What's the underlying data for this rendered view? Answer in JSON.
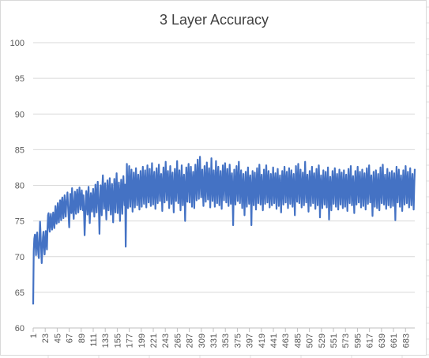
{
  "chart_data": {
    "type": "line",
    "title": "3 Layer Accuracy",
    "xlabel": "",
    "ylabel": "",
    "ylim": [
      60,
      100
    ],
    "yticks": [
      60,
      65,
      70,
      75,
      80,
      85,
      90,
      95,
      100
    ],
    "xlim": [
      1,
      700
    ],
    "xticks": [
      1,
      23,
      45,
      67,
      89,
      111,
      133,
      155,
      177,
      199,
      221,
      243,
      265,
      287,
      309,
      331,
      353,
      375,
      397,
      419,
      441,
      463,
      485,
      507,
      529,
      551,
      573,
      595,
      617,
      639,
      661,
      683
    ],
    "grid": true,
    "legend": "none",
    "series_color": "#4472c4",
    "series": [
      {
        "values": [
          63.3,
          70.8,
          72.5,
          73.1,
          71.9,
          70.2,
          72.8,
          73.4,
          71.5,
          70.4,
          69.8,
          72.6,
          74.9,
          73.1,
          71.2,
          69.1,
          70.9,
          72.7,
          73.5,
          71.8,
          70.3,
          72.1,
          73.6,
          72.4,
          71.0,
          73.9,
          75.8,
          76.1,
          74.2,
          73.5,
          75.3,
          76.0,
          74.5,
          73.8,
          74.9,
          76.2,
          75.1,
          74.0,
          75.5,
          77.1,
          75.8,
          74.6,
          75.9,
          77.5,
          76.0,
          74.8,
          76.4,
          77.9,
          76.3,
          75.1,
          77.8,
          78.3,
          76.5,
          75.4,
          77.0,
          78.6,
          76.9,
          75.6,
          77.4,
          78.1,
          79.0,
          77.2,
          75.8,
          74.1,
          76.5,
          78.8,
          77.5,
          76.1,
          79.6,
          78.0,
          76.4,
          75.3,
          77.7,
          79.1,
          77.3,
          76.0,
          78.5,
          79.4,
          77.6,
          76.2,
          78.0,
          79.7,
          78.2,
          76.6,
          77.9,
          79.3,
          77.8,
          76.5,
          78.6,
          76.0,
          73.0,
          75.4,
          77.8,
          79.2,
          77.4,
          75.9,
          78.3,
          79.8,
          76.8,
          74.7,
          77.0,
          78.9,
          77.5,
          76.3,
          78.1,
          79.5,
          77.7,
          75.6,
          77.9,
          80.1,
          78.3,
          76.2,
          78.8,
          80.5,
          78.6,
          76.4,
          73.2,
          77.5,
          80.0,
          78.2,
          75.8,
          79.6,
          81.4,
          79.2,
          76.7,
          78.4,
          80.3,
          77.9,
          75.2,
          78.1,
          80.7,
          78.8,
          76.5,
          79.1,
          81.0,
          78.6,
          75.9,
          78.3,
          80.2,
          77.6,
          74.8,
          78.0,
          80.9,
          78.5,
          76.2,
          79.3,
          81.7,
          79.0,
          76.1,
          78.6,
          80.4,
          77.8,
          75.0,
          78.4,
          80.8,
          78.2,
          76.0,
          79.5,
          81.3,
          78.7,
          77.2,
          80.1,
          71.4,
          78.0,
          83.0,
          79.3,
          76.8,
          79.9,
          82.7,
          79.5,
          77.0,
          80.2,
          82.2,
          79.0,
          76.3,
          79.4,
          81.8,
          78.9,
          76.9,
          80.0,
          82.4,
          79.6,
          77.2,
          79.8,
          81.5,
          78.7,
          76.6,
          79.9,
          82.0,
          79.2,
          77.0,
          80.3,
          82.6,
          79.7,
          77.4,
          80.5,
          82.1,
          79.4,
          76.9,
          80.0,
          82.8,
          79.9,
          77.6,
          80.4,
          82.3,
          79.5,
          77.1,
          80.2,
          83.1,
          80.0,
          77.3,
          80.6,
          81.9,
          79.1,
          76.7,
          79.8,
          82.4,
          79.6,
          77.5,
          80.3,
          82.9,
          80.1,
          77.8,
          80.7,
          81.6,
          79.2,
          76.4,
          79.9,
          82.5,
          79.8,
          77.6,
          80.5,
          83.3,
          80.4,
          77.9,
          80.8,
          82.0,
          79.3,
          76.8,
          80.1,
          82.7,
          79.9,
          77.4,
          80.6,
          81.8,
          78.9,
          76.2,
          79.5,
          82.3,
          79.7,
          77.8,
          80.9,
          83.4,
          80.3,
          77.5,
          80.2,
          82.1,
          79.4,
          76.5,
          79.9,
          82.8,
          79.6,
          77.2,
          80.7,
          81.5,
          79.0,
          75.0,
          79.3,
          82.5,
          80.0,
          77.7,
          81.0,
          83.0,
          80.2,
          77.6,
          80.4,
          82.6,
          79.8,
          77.0,
          80.3,
          81.9,
          79.2,
          76.8,
          80.5,
          82.9,
          80.1,
          77.9,
          80.8,
          83.6,
          80.5,
          78.1,
          81.1,
          84.0,
          80.9,
          78.3,
          80.6,
          82.2,
          79.5,
          77.1,
          80.0,
          82.7,
          79.9,
          77.7,
          80.9,
          83.2,
          80.3,
          78.0,
          80.7,
          82.4,
          79.6,
          76.9,
          80.1,
          83.8,
          80.6,
          77.8,
          80.2,
          82.1,
          79.3,
          77.0,
          80.4,
          83.4,
          80.1,
          77.5,
          80.8,
          82.6,
          79.7,
          77.2,
          80.3,
          82.0,
          79.4,
          76.7,
          80.0,
          82.8,
          80.2,
          77.9,
          81.0,
          83.1,
          80.4,
          77.6,
          80.5,
          82.3,
          79.5,
          77.1,
          80.2,
          82.9,
          79.9,
          77.4,
          80.7,
          81.7,
          79.0,
          74.4,
          79.2,
          82.2,
          79.6,
          77.3,
          80.4,
          82.7,
          80.0,
          77.8,
          80.9,
          83.3,
          80.2,
          77.5,
          80.3,
          82.1,
          79.4,
          76.8,
          80.0,
          81.6,
          78.9,
          75.8,
          79.5,
          81.9,
          79.3,
          77.0,
          80.2,
          82.5,
          79.8,
          77.4,
          80.6,
          81.4,
          78.7,
          74.4,
          79.0,
          82.0,
          79.5,
          77.2,
          80.1,
          81.8,
          79.2,
          76.6,
          79.8,
          82.4,
          79.7,
          77.5,
          80.6,
          82.9,
          80.0,
          77.3,
          80.3,
          81.5,
          79.0,
          76.5,
          79.7,
          82.2,
          79.6,
          77.4,
          80.5,
          82.8,
          79.9,
          77.6,
          80.8,
          82.0,
          79.3,
          76.9,
          79.8,
          81.6,
          79.1,
          77.2,
          80.2,
          82.5,
          79.8,
          77.5,
          80.4,
          81.7,
          79.2,
          76.7,
          79.9,
          82.3,
          79.6,
          77.1,
          80.1,
          81.4,
          78.8,
          76.2,
          79.5,
          82.0,
          79.4,
          77.3,
          80.3,
          82.6,
          79.8,
          77.6,
          80.7,
          81.9,
          79.3,
          76.8,
          79.9,
          82.4,
          79.7,
          77.4,
          80.5,
          82.1,
          79.5,
          77.0,
          80.2,
          81.6,
          79.0,
          75.8,
          79.4,
          82.7,
          80.0,
          77.7,
          80.8,
          83.0,
          80.1,
          77.5,
          80.3,
          82.2,
          79.6,
          76.9,
          80.0,
          81.8,
          79.2,
          77.2,
          80.4,
          83.3,
          80.2,
          77.6,
          80.1,
          81.5,
          78.9,
          76.3,
          79.6,
          82.0,
          79.4,
          77.1,
          80.2,
          82.6,
          79.8,
          77.5,
          80.6,
          81.7,
          79.1,
          76.7,
          79.9,
          82.3,
          79.5,
          77.2,
          80.3,
          82.8,
          79.9,
          75.5,
          79.0,
          81.4,
          79.2,
          76.8,
          79.8,
          82.1,
          79.4,
          77.3,
          80.4,
          81.9,
          79.3,
          76.9,
          80.0,
          82.5,
          79.7,
          75.2,
          78.8,
          81.2,
          79.0,
          76.5,
          79.7,
          82.0,
          79.5,
          77.4,
          80.3,
          82.4,
          79.8,
          77.0,
          80.1,
          81.6,
          79.2,
          76.6,
          79.9,
          82.2,
          79.6,
          77.3,
          80.5,
          81.8,
          79.1,
          76.8,
          79.7,
          82.1,
          79.3,
          77.0,
          80.2,
          81.5,
          78.9,
          76.4,
          79.6,
          82.3,
          79.7,
          77.5,
          80.4,
          82.7,
          79.9,
          77.2,
          80.1,
          81.3,
          78.8,
          76.1,
          79.5,
          82.0,
          79.4,
          77.3,
          80.3,
          82.6,
          79.8,
          77.6,
          80.7,
          81.9,
          79.2,
          76.9,
          79.9,
          82.2,
          79.5,
          77.1,
          80.2,
          81.7,
          79.0,
          76.6,
          79.8,
          82.4,
          79.6,
          77.4,
          80.5,
          82.8,
          79.9,
          77.6,
          80.3,
          81.4,
          78.7,
          75.7,
          79.2,
          81.9,
          79.3,
          77.0,
          80.0,
          82.1,
          79.4,
          76.8,
          79.7,
          81.6,
          79.1,
          76.5,
          79.8,
          82.5,
          79.7,
          77.5,
          80.6,
          82.9,
          80.0,
          77.3,
          80.2,
          81.5,
          79.0,
          76.7,
          79.9,
          82.3,
          79.5,
          77.2,
          80.4,
          81.8,
          79.2,
          76.9,
          79.8,
          82.0,
          79.4,
          77.1,
          80.1,
          81.7,
          79.0,
          75.1,
          79.3,
          82.6,
          79.9,
          77.6,
          80.5,
          82.2,
          79.6,
          77.0,
          80.0,
          81.4,
          78.9,
          76.4,
          79.7,
          82.1,
          79.5,
          77.3,
          80.3,
          82.7,
          79.8,
          77.5,
          80.6,
          81.9,
          79.3,
          76.9,
          79.9,
          82.4,
          79.6,
          77.2,
          80.2,
          81.6,
          79.1,
          76.6,
          79.8,
          82.3
        ]
      }
    ]
  }
}
